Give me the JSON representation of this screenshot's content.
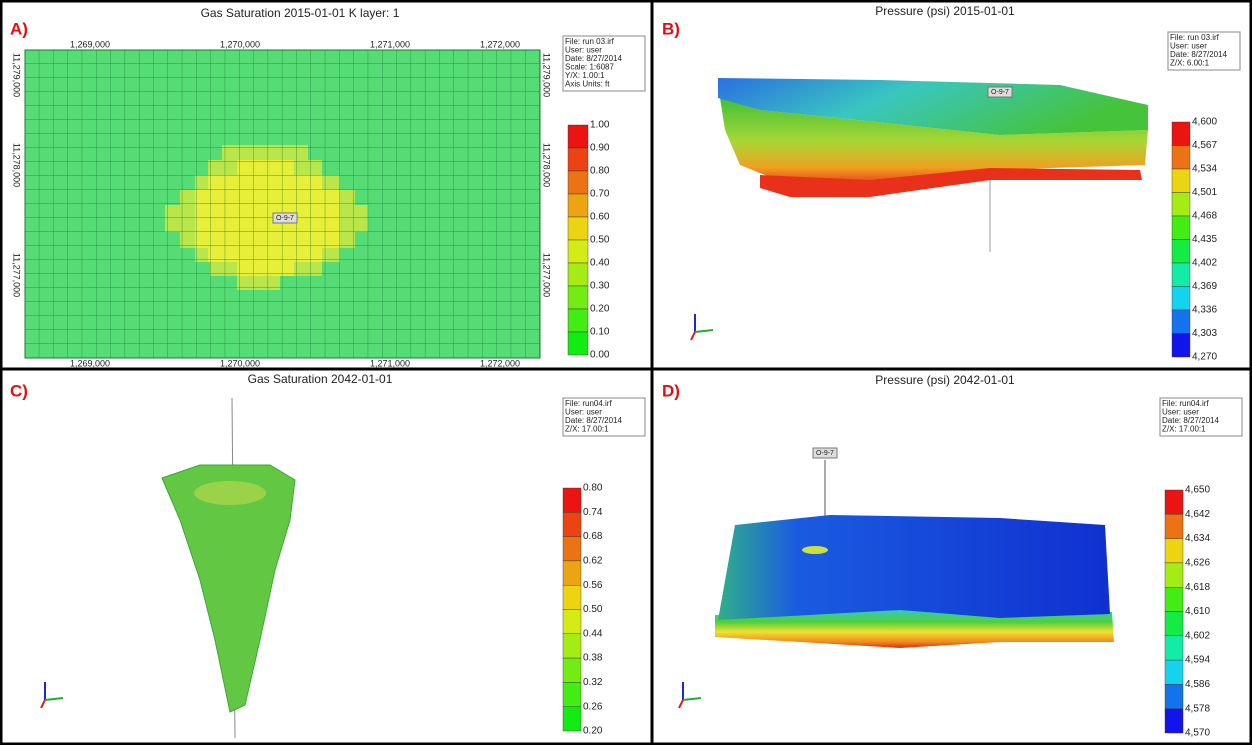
{
  "panels": [
    {
      "letter": "A)",
      "title": "Gas Saturation 2015-01-01     K layer: 1",
      "info": [
        "File: run 03.irf",
        "User: user",
        "Date: 8/27/2014",
        "Scale: 1:6087",
        "Y/X: 1.00:1",
        "Axis Units: ft"
      ],
      "colorbar": [
        "1.00",
        "0.90",
        "0.80",
        "0.70",
        "0.60",
        "0.50",
        "0.40",
        "0.30",
        "0.20",
        "0.10",
        "0.00"
      ],
      "top_labels": [
        "1,269,000",
        "1,270,000",
        "1,271,000",
        "1,272,000"
      ],
      "bottom_labels": [
        "1,269,000",
        "1,270,000",
        "1,271,000",
        "1,272,000"
      ],
      "left_labels": [
        "11,279,000",
        "11,278,000",
        "11,277,000"
      ],
      "right_labels": [
        "11,279,000",
        "11,278,000",
        "11,277,000"
      ],
      "well": "O-9-7"
    },
    {
      "letter": "B)",
      "title": "Pressure (psi) 2015-01-01",
      "info": [
        "File: run 03.irf",
        "User: user",
        "Date: 8/27/2014",
        "Z/X: 6.00:1"
      ],
      "colorbar": [
        "4,600",
        "4,567",
        "4,534",
        "4,501",
        "4,468",
        "4,435",
        "4,402",
        "4,369",
        "4,336",
        "4,303",
        "4,270"
      ],
      "well": "O-9-7"
    },
    {
      "letter": "C)",
      "title": "Gas Saturation 2042-01-01",
      "info": [
        "File: run04.irf",
        "User: user",
        "Date: 8/27/2014",
        "Z/X: 17.00:1"
      ],
      "colorbar": [
        "0.80",
        "0.74",
        "0.68",
        "0.62",
        "0.56",
        "0.50",
        "0.44",
        "0.38",
        "0.32",
        "0.26",
        "0.20"
      ]
    },
    {
      "letter": "D)",
      "title": "Pressure (psi) 2042-01-01",
      "info": [
        "File: run04.irf",
        "User: user",
        "Date: 8/27/2014",
        "Z/X: 17.00:1"
      ],
      "colorbar": [
        "4,650",
        "4,642",
        "4,634",
        "4,626",
        "4,618",
        "4,610",
        "4,602",
        "4,594",
        "4,586",
        "4,578",
        "4,570"
      ],
      "well": "O-9-7"
    }
  ]
}
